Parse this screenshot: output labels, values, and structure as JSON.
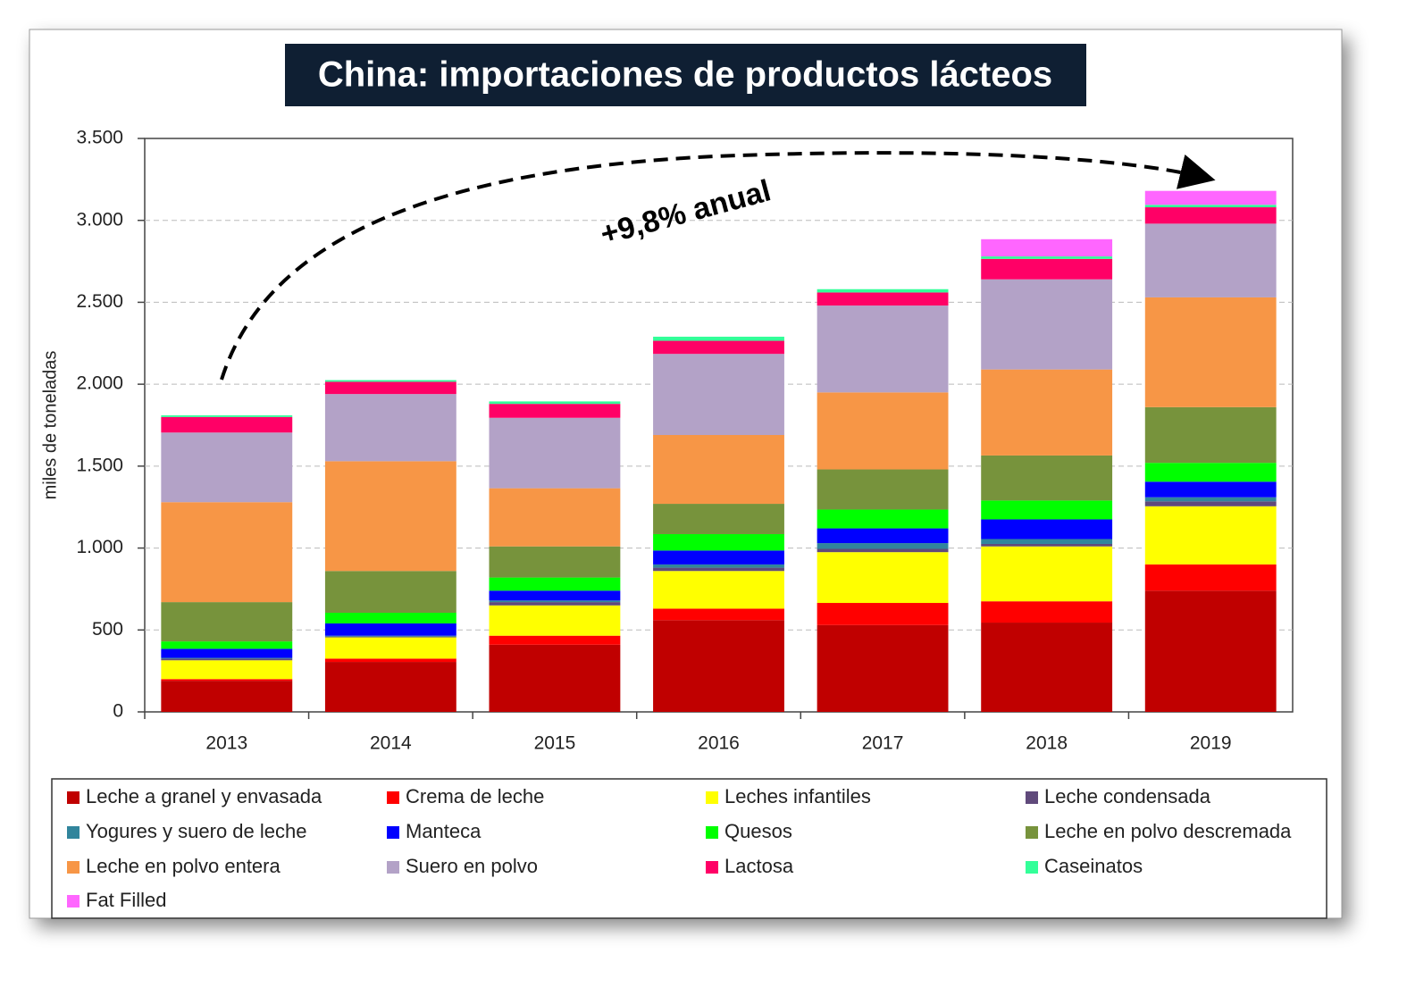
{
  "chart_data": {
    "type": "stacked-bar",
    "title": "China: importaciones de productos lácteos",
    "y_label": "miles de toneladas",
    "annotation": "+9,8% anual",
    "categories": [
      "2013",
      "2014",
      "2015",
      "2016",
      "2017",
      "2018",
      "2019"
    ],
    "ylim": [
      0,
      3500
    ],
    "yticks": [
      0,
      500,
      {
        "value": 1000,
        "label": "1.000"
      },
      {
        "value": 1500,
        "label": "1.500"
      },
      {
        "value": 2000,
        "label": "2.000"
      },
      {
        "value": 2500,
        "label": "2.500"
      },
      {
        "value": 3000,
        "label": "3.000"
      },
      {
        "value": 3500,
        "label": "3.500"
      }
    ],
    "grid": true,
    "series": [
      {
        "name": "Leche a granel y envasada",
        "color": "#c00000",
        "values": [
          190,
          305,
          410,
          560,
          530,
          545,
          740
        ]
      },
      {
        "name": "Crema de leche",
        "color": "#ff0000",
        "values": [
          10,
          20,
          55,
          70,
          135,
          130,
          160
        ]
      },
      {
        "name": "Leches infantiles",
        "color": "#ffff00",
        "values": [
          115,
          130,
          185,
          230,
          310,
          335,
          355
        ]
      },
      {
        "name": "Leche condensada",
        "color": "#604a7b",
        "values": [
          10,
          5,
          20,
          20,
          20,
          15,
          30
        ]
      },
      {
        "name": "Yogures y suero de leche",
        "color": "#31859c",
        "values": [
          5,
          5,
          10,
          20,
          35,
          30,
          25
        ]
      },
      {
        "name": "Manteca",
        "color": "#0000ff",
        "values": [
          55,
          75,
          60,
          85,
          90,
          120,
          95
        ]
      },
      {
        "name": "Quesos",
        "color": "#00ff00",
        "values": [
          45,
          65,
          80,
          100,
          115,
          115,
          115
        ]
      },
      {
        "name": "Leche en polvo descremada",
        "color": "#77933c",
        "values": [
          240,
          255,
          190,
          185,
          245,
          275,
          340
        ]
      },
      {
        "name": "Leche en polvo entera",
        "color": "#f79646",
        "values": [
          610,
          670,
          355,
          420,
          470,
          525,
          670
        ]
      },
      {
        "name": "Suero en polvo",
        "color": "#b3a2c7",
        "values": [
          425,
          410,
          430,
          495,
          530,
          550,
          450
        ]
      },
      {
        "name": "Lactosa",
        "color": "#ff0066",
        "values": [
          95,
          75,
          85,
          80,
          80,
          125,
          100
        ]
      },
      {
        "name": "Caseinatos",
        "color": "#33ff99",
        "values": [
          10,
          10,
          15,
          25,
          20,
          15,
          15
        ]
      },
      {
        "name": "Fat Filled",
        "color": "#ff66ff",
        "values": [
          0,
          0,
          0,
          0,
          0,
          105,
          85
        ]
      }
    ]
  }
}
